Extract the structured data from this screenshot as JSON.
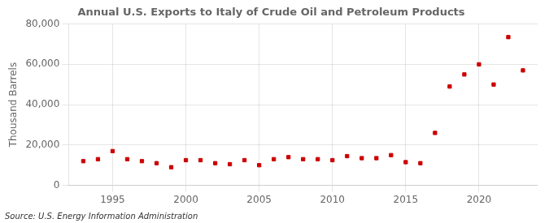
{
  "chart_data": {
    "type": "scatter",
    "title": "Annual U.S. Exports to Italy of Crude Oil and Petroleum Products",
    "ylabel": "Thousand Barrels",
    "source": "Source: U.S. Energy Information Administration",
    "x": [
      1993,
      1994,
      1995,
      1996,
      1997,
      1998,
      1999,
      2000,
      2001,
      2002,
      2003,
      2004,
      2005,
      2006,
      2007,
      2008,
      2009,
      2010,
      2011,
      2012,
      2013,
      2014,
      2015,
      2016,
      2017,
      2018,
      2019,
      2020,
      2021,
      2022,
      2023
    ],
    "values": [
      12000,
      13000,
      17000,
      13000,
      12000,
      11000,
      9000,
      12500,
      12500,
      11000,
      10500,
      12500,
      10000,
      13000,
      14000,
      13000,
      13000,
      12500,
      14500,
      13500,
      13500,
      15000,
      11500,
      11000,
      26000,
      49000,
      55000,
      60000,
      50000,
      73500,
      57000
    ],
    "color": "#cc0000",
    "marker": "square",
    "xlim": [
      1992,
      2024
    ],
    "xticks": [
      1995,
      2000,
      2005,
      2010,
      2015,
      2020
    ],
    "ylim": [
      0,
      80000
    ],
    "yticks": [
      0,
      {
        "value": 20000,
        "label": "20,000"
      },
      {
        "value": 40000,
        "label": "40,000"
      },
      {
        "value": 60000,
        "label": "60,000"
      },
      {
        "value": 80000,
        "label": "80,000"
      }
    ],
    "grid": true
  }
}
